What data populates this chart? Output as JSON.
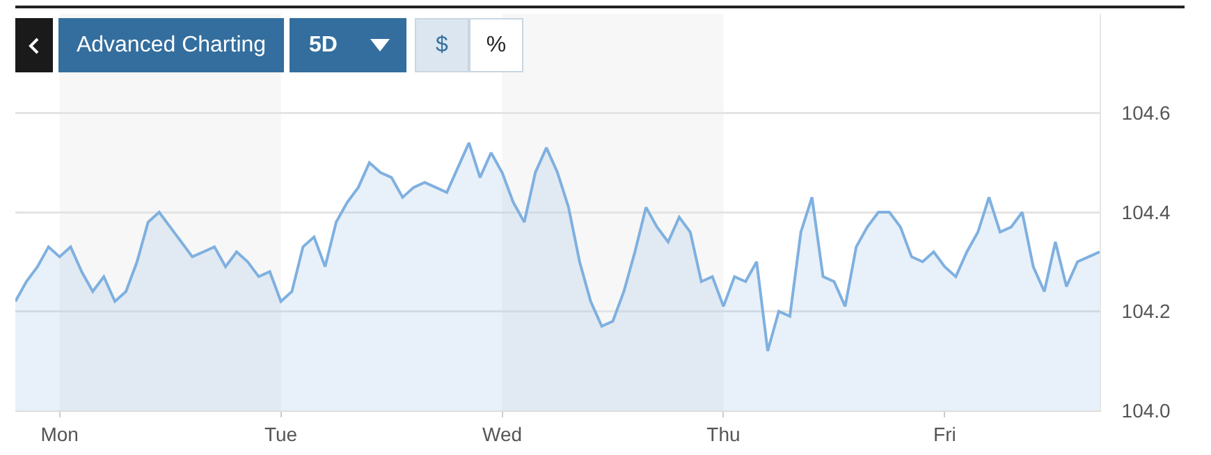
{
  "chart_data": {
    "type": "area",
    "categories": [
      null,
      null,
      null,
      null,
      "Mon",
      null,
      null,
      null,
      null,
      null,
      null,
      null,
      null,
      null,
      null,
      null,
      null,
      null,
      null,
      null,
      null,
      null,
      null,
      null,
      "Tue",
      null,
      null,
      null,
      null,
      null,
      null,
      null,
      null,
      null,
      null,
      null,
      null,
      null,
      null,
      null,
      null,
      null,
      null,
      null,
      "Wed",
      null,
      null,
      null,
      null,
      null,
      null,
      null,
      null,
      null,
      null,
      null,
      null,
      null,
      null,
      null,
      null,
      null,
      null,
      null,
      "Thu",
      null,
      null,
      null,
      null,
      null,
      null,
      null,
      null,
      null,
      null,
      null,
      null,
      null,
      null,
      null,
      null,
      null,
      null,
      null,
      "Fri",
      null,
      null,
      null,
      null,
      null,
      null,
      null,
      null,
      null,
      null,
      null,
      null,
      null,
      null
    ],
    "series": [
      {
        "color": "#7fb0e0",
        "values": [
          104.22,
          104.26,
          104.29,
          104.33,
          104.31,
          104.33,
          104.28,
          104.24,
          104.27,
          104.22,
          104.24,
          104.3,
          104.38,
          104.4,
          104.37,
          104.34,
          104.31,
          104.32,
          104.33,
          104.29,
          104.32,
          104.3,
          104.27,
          104.28,
          104.22,
          104.24,
          104.33,
          104.35,
          104.29,
          104.38,
          104.42,
          104.45,
          104.5,
          104.48,
          104.47,
          104.43,
          104.45,
          104.46,
          104.45,
          104.44,
          104.49,
          104.54,
          104.47,
          104.52,
          104.48,
          104.42,
          104.38,
          104.48,
          104.53,
          104.48,
          104.41,
          104.3,
          104.22,
          104.17,
          104.18,
          104.24,
          104.32,
          104.41,
          104.37,
          104.34,
          104.39,
          104.36,
          104.26,
          104.27,
          104.21,
          104.27,
          104.26,
          104.3,
          104.12,
          104.2,
          104.19,
          104.36,
          104.43,
          104.27,
          104.26,
          104.21,
          104.33,
          104.37,
          104.4,
          104.4,
          104.37,
          104.31,
          104.3,
          104.32,
          104.29,
          104.27,
          104.32,
          104.36,
          104.43,
          104.36,
          104.37,
          104.4,
          104.29,
          104.24,
          104.34,
          104.25,
          104.3,
          104.31,
          104.32
        ]
      }
    ],
    "ylim": [
      104.0,
      104.8
    ],
    "yticks": [
      {
        "value": 104.0,
        "label": "104.0"
      },
      104.2,
      104.4,
      104.6
    ],
    "grid": "y",
    "bands": [
      {
        "axis": "x",
        "from": "Mon",
        "to": "Tue",
        "color": "#f7f7f7"
      },
      {
        "axis": "x",
        "from": "Wed",
        "to": "Thu",
        "color": "#f7f7f7"
      }
    ],
    "annotations": [
      "Advanced Charting",
      "5D",
      "$",
      "%"
    ]
  }
}
